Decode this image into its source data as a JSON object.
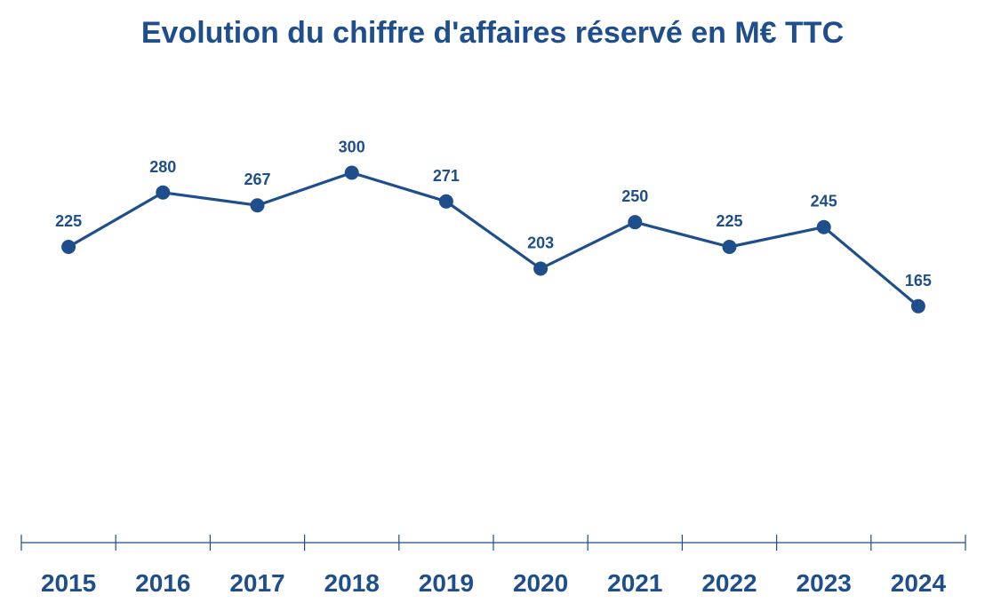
{
  "chart_data": {
    "type": "line",
    "title": "Evolution du chiffre d'affaires réservé en M€ TTC",
    "xlabel": "",
    "ylabel": "",
    "categories": [
      "2015",
      "2016",
      "2017",
      "2018",
      "2019",
      "2020",
      "2021",
      "2022",
      "2023",
      "2024"
    ],
    "series": [
      {
        "values": [
          225,
          280,
          267,
          300,
          271,
          203,
          250,
          225,
          245,
          165
        ],
        "color": "#1F4E8C"
      }
    ],
    "data_labels": true,
    "grid": false,
    "legend": "none"
  }
}
